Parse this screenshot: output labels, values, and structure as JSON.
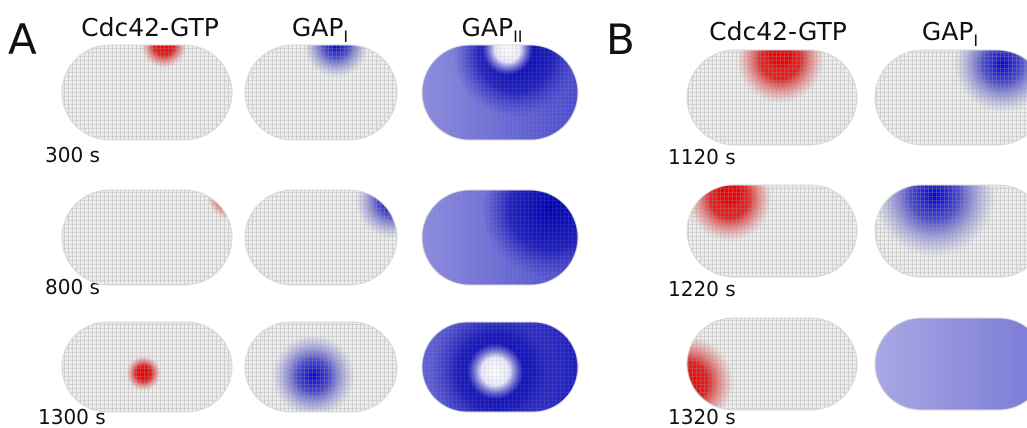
{
  "panels": [
    {
      "label": "A",
      "columns": [
        {
          "name": "Cdc42-GTP"
        },
        {
          "name": "GAP",
          "subscript": "I"
        },
        {
          "name": "GAP",
          "subscript": "II"
        }
      ],
      "times": [
        "300 s",
        "800 s",
        "1300 s"
      ]
    },
    {
      "label": "B",
      "columns": [
        {
          "name": "Cdc42-GTP"
        },
        {
          "name": "GAP",
          "subscript": "I"
        }
      ],
      "times": [
        "1120 s",
        "1220 s",
        "1320 s"
      ]
    }
  ]
}
